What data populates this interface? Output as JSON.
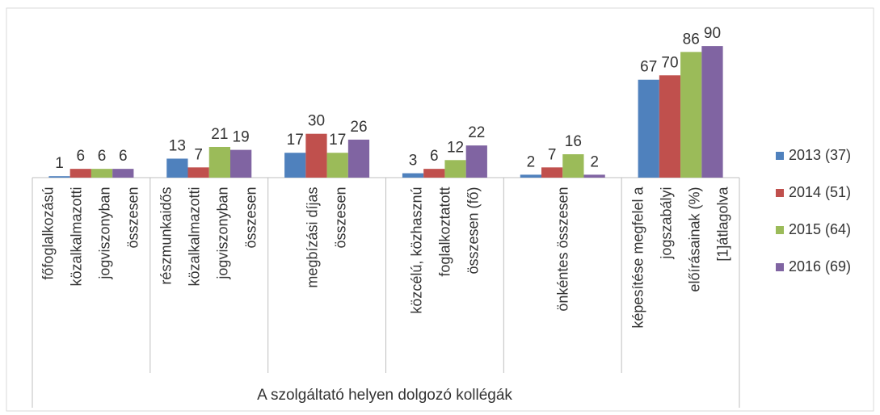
{
  "chart_data": {
    "type": "bar",
    "categories": [
      "főfoglalkozású közalkalmazotti jogviszonyban összesen",
      "részmunkaidős közalkalmazotti jogviszonyban összesen",
      "megbízási díjas összesen",
      "közcélú, közhasznú foglalkoztatott összesen (fő)",
      "önkéntes összesen",
      "képesítése megfelel a jogszabályi előírásainak (%)[1]átlagolva"
    ],
    "series": [
      {
        "name": "2013 (37)",
        "color": "#4f81bd",
        "values": [
          1,
          13,
          17,
          3,
          2,
          67
        ]
      },
      {
        "name": "2014 (51)",
        "color": "#c0504d",
        "values": [
          6,
          7,
          30,
          6,
          7,
          70
        ]
      },
      {
        "name": "2015 (64)",
        "color": "#9bbb59",
        "values": [
          6,
          21,
          17,
          12,
          16,
          86
        ]
      },
      {
        "name": "2016 (69)",
        "color": "#8064a2",
        "values": [
          6,
          19,
          26,
          22,
          2,
          90
        ]
      }
    ],
    "xlabel": "A szolgáltató helyen dolgozó kollégák",
    "ylim": [
      0,
      100
    ],
    "legend": "right"
  }
}
